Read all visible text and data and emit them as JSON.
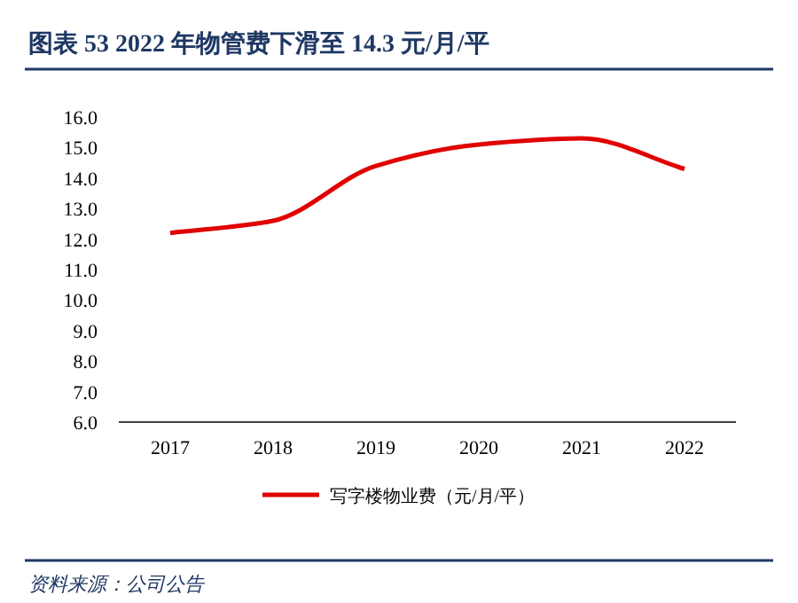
{
  "chart_data": {
    "type": "line",
    "title": "图表 53  2022 年物管费下滑至 14.3 元/月/平",
    "categories": [
      "2017",
      "2018",
      "2019",
      "2020",
      "2021",
      "2022"
    ],
    "series": [
      {
        "name": "写字楼物业费（元/月/平）",
        "color": "#e00000",
        "values": [
          12.2,
          12.6,
          14.4,
          15.1,
          15.3,
          14.3
        ]
      }
    ],
    "ylim": [
      6,
      16
    ],
    "yticks": [
      {
        "value": 6,
        "label": "6.0"
      },
      {
        "value": 7,
        "label": "7.0"
      },
      {
        "value": 8,
        "label": "8.0"
      },
      {
        "value": 9,
        "label": "9.0"
      },
      {
        "value": 10,
        "label": "10.0"
      },
      {
        "value": 11,
        "label": "11.0"
      },
      {
        "value": 12,
        "label": "12.0"
      },
      {
        "value": 13,
        "label": "13.0"
      },
      {
        "value": 14,
        "label": "14.0"
      },
      {
        "value": 15,
        "label": "15.0"
      },
      {
        "value": 16,
        "label": "16.0"
      }
    ],
    "legend": "bottom",
    "marker": "none",
    "line_style": "solid",
    "grid": false,
    "annotations": [
      "资料来源：公司公告"
    ]
  }
}
